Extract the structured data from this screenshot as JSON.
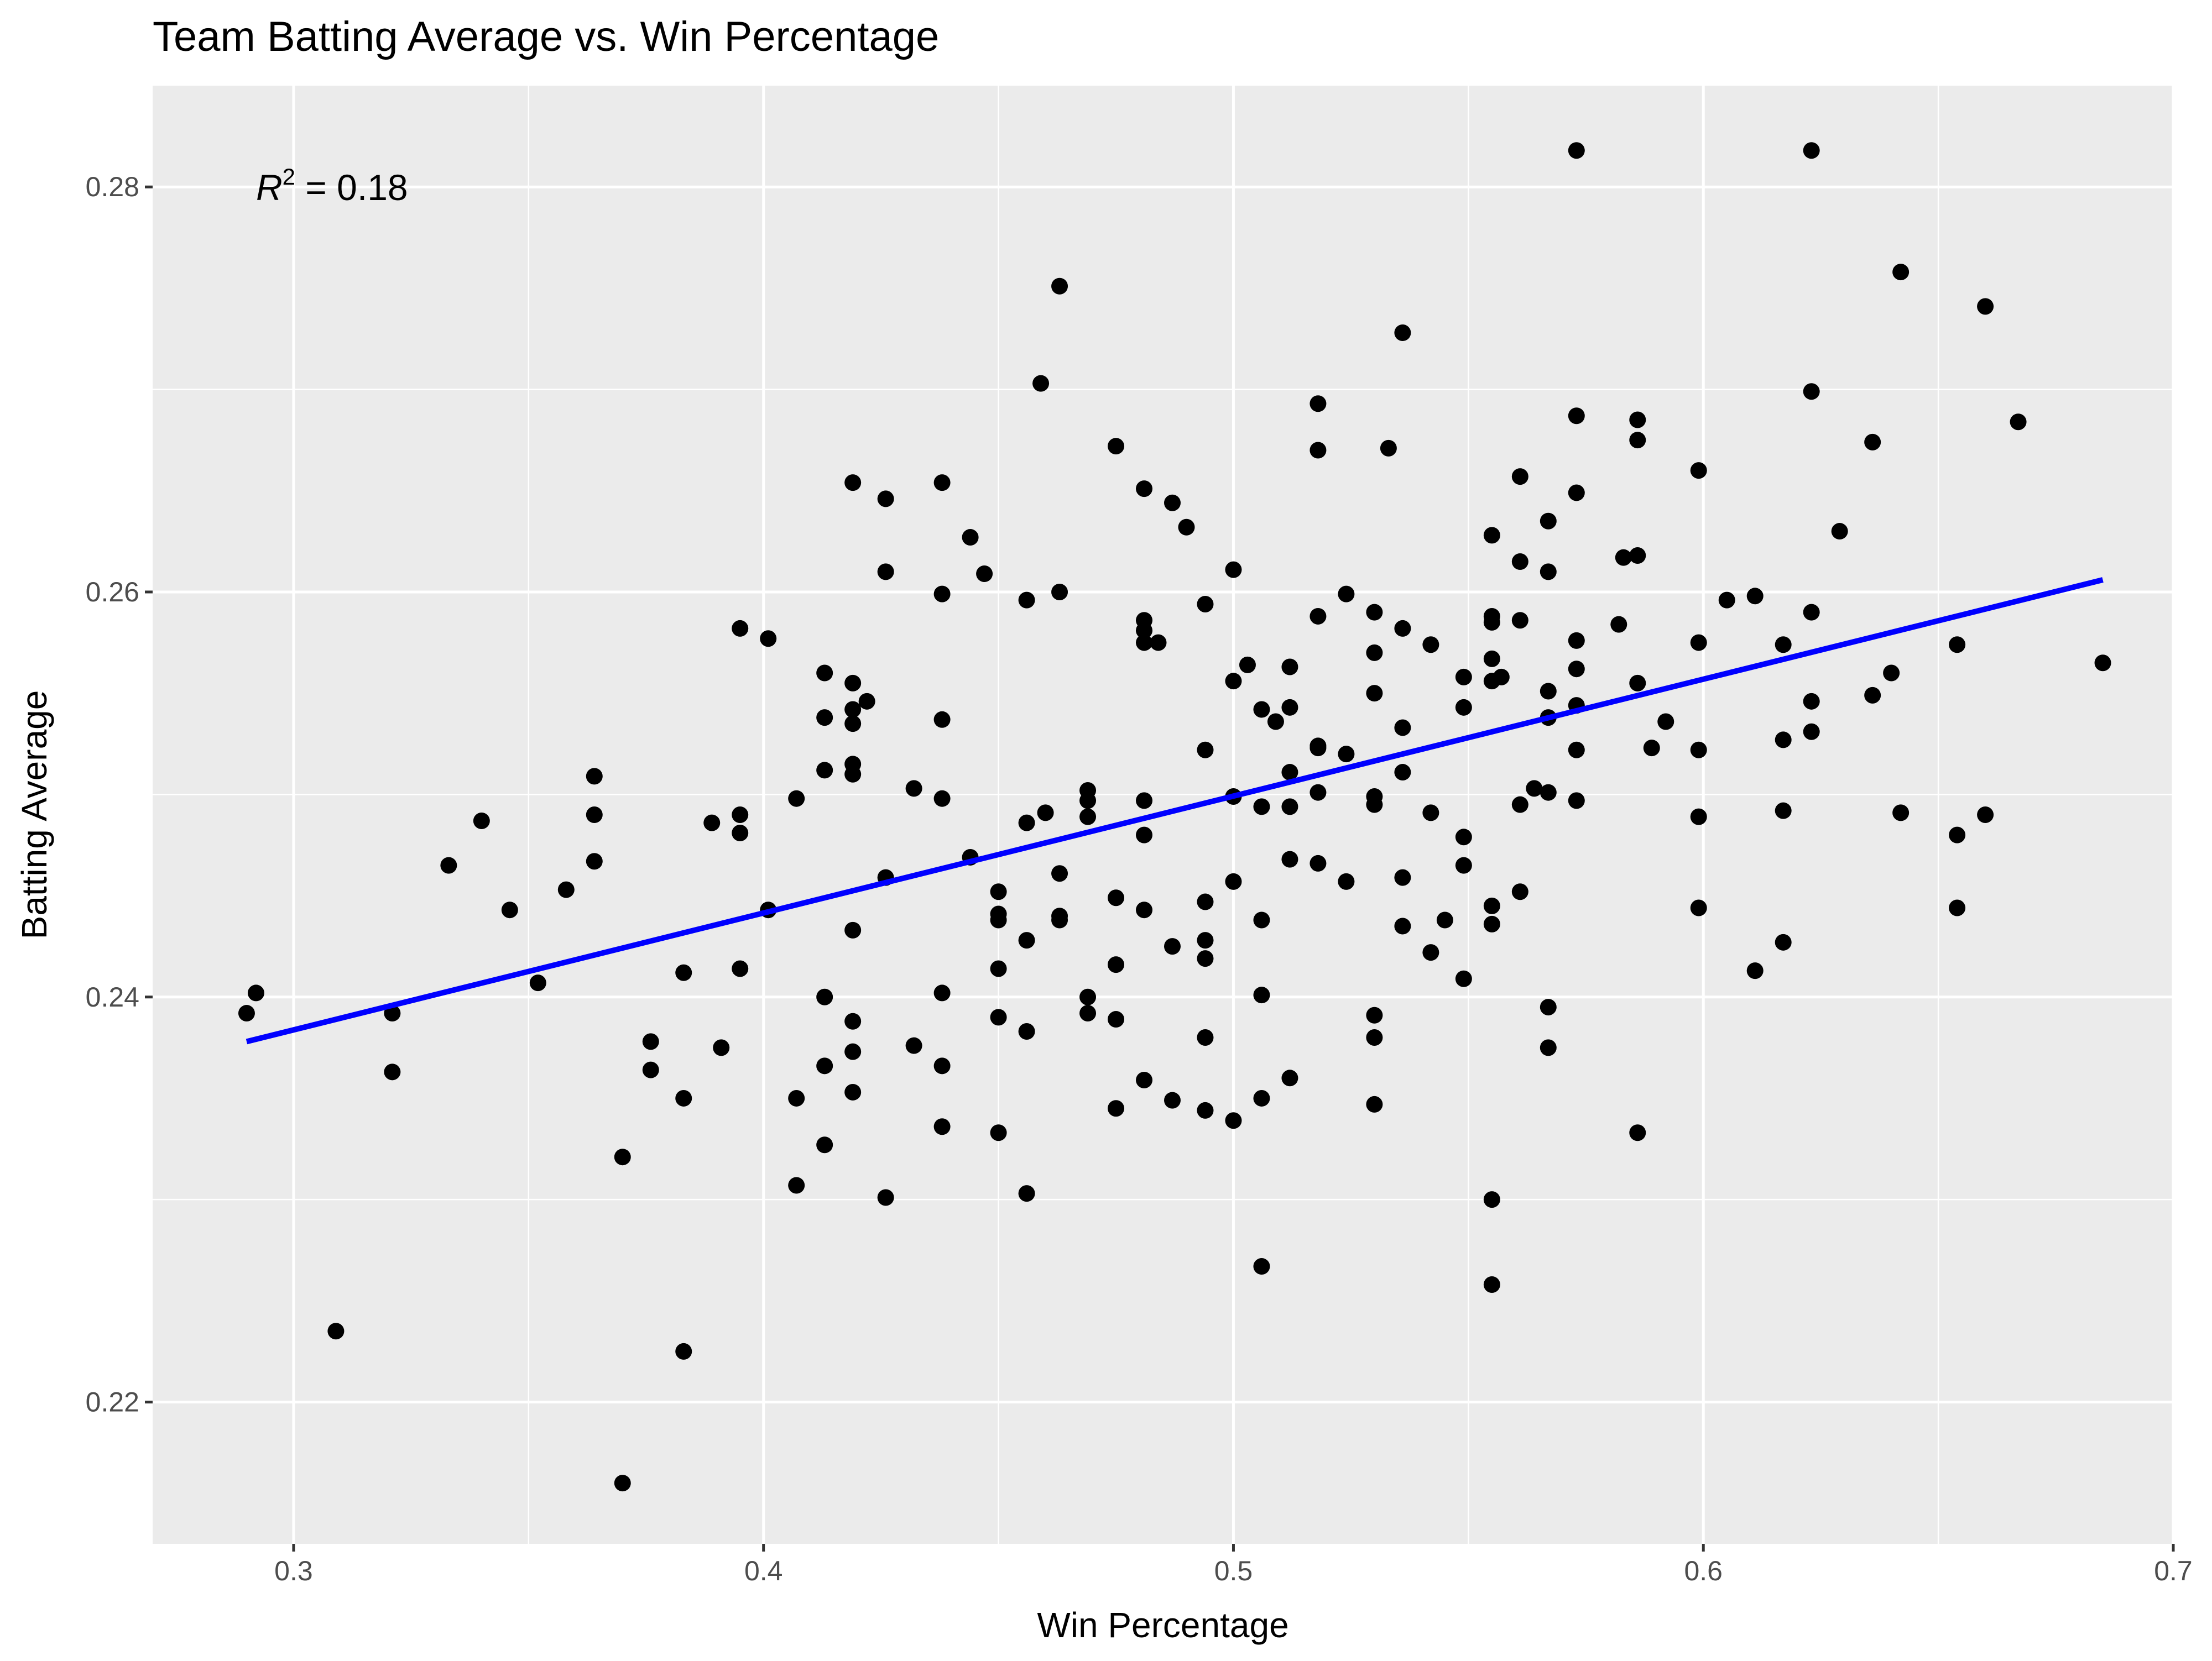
{
  "chart_data": {
    "type": "scatter",
    "title": "Team Batting Average vs. Win Percentage",
    "xlabel": "Win Percentage",
    "ylabel": "Batting Average",
    "xlim": [
      0.27,
      0.7
    ],
    "ylim": [
      0.213,
      0.285
    ],
    "xticks": [
      0.3,
      0.4,
      0.5,
      0.6,
      0.7
    ],
    "xtick_labels": [
      "0.3",
      "0.4",
      "0.5",
      "0.6",
      "0.7"
    ],
    "yticks": [
      0.22,
      0.24,
      0.26,
      0.28
    ],
    "ytick_labels": [
      "0.22",
      "0.24",
      "0.26",
      "0.28"
    ],
    "grid": true,
    "annotation": {
      "prefix": "R",
      "superscript": "2",
      "suffix": " = 0.18",
      "x": 0.292,
      "y": 0.28
    },
    "trend_line": {
      "x": [
        0.29,
        0.685
      ],
      "y": [
        0.2378,
        0.2606
      ],
      "color": "#0000ff"
    },
    "colors": {
      "points": "#000000",
      "trend": "#0000ff",
      "panel": "#ebebeb",
      "grid": "#ffffff"
    },
    "series": [
      {
        "x": [
          0.29,
          0.292,
          0.309,
          0.321,
          0.321,
          0.333,
          0.34,
          0.346,
          0.352,
          0.358,
          0.364,
          0.364,
          0.364,
          0.37,
          0.37,
          0.376,
          0.376,
          0.383,
          0.383,
          0.383,
          0.389,
          0.391,
          0.395,
          0.395,
          0.395,
          0.395,
          0.401,
          0.401,
          0.407,
          0.407,
          0.407,
          0.413,
          0.413,
          0.413,
          0.413,
          0.413,
          0.413,
          0.419,
          0.419,
          0.419,
          0.419,
          0.419,
          0.419,
          0.419,
          0.419,
          0.419,
          0.419,
          0.422,
          0.426,
          0.426,
          0.426,
          0.426,
          0.432,
          0.432,
          0.438,
          0.438,
          0.438,
          0.438,
          0.438,
          0.438,
          0.438,
          0.444,
          0.444,
          0.447,
          0.45,
          0.45,
          0.45,
          0.45,
          0.45,
          0.45,
          0.456,
          0.456,
          0.456,
          0.456,
          0.456,
          0.459,
          0.46,
          0.463,
          0.463,
          0.463,
          0.463,
          0.463,
          0.469,
          0.469,
          0.469,
          0.469,
          0.469,
          0.475,
          0.475,
          0.475,
          0.475,
          0.475,
          0.481,
          0.481,
          0.481,
          0.481,
          0.481,
          0.481,
          0.481,
          0.481,
          0.484,
          0.487,
          0.487,
          0.487,
          0.49,
          0.494,
          0.494,
          0.494,
          0.494,
          0.494,
          0.494,
          0.494,
          0.5,
          0.5,
          0.5,
          0.5,
          0.5,
          0.503,
          0.506,
          0.506,
          0.506,
          0.506,
          0.506,
          0.506,
          0.509,
          0.512,
          0.512,
          0.512,
          0.512,
          0.512,
          0.512,
          0.518,
          0.518,
          0.518,
          0.518,
          0.518,
          0.518,
          0.518,
          0.524,
          0.524,
          0.524,
          0.53,
          0.53,
          0.53,
          0.53,
          0.53,
          0.53,
          0.53,
          0.53,
          0.533,
          0.536,
          0.536,
          0.536,
          0.536,
          0.536,
          0.536,
          0.542,
          0.542,
          0.542,
          0.545,
          0.549,
          0.549,
          0.549,
          0.549,
          0.549,
          0.555,
          0.555,
          0.555,
          0.555,
          0.555,
          0.555,
          0.555,
          0.555,
          0.555,
          0.557,
          0.561,
          0.561,
          0.561,
          0.561,
          0.561,
          0.564,
          0.567,
          0.567,
          0.567,
          0.567,
          0.567,
          0.567,
          0.567,
          0.573,
          0.573,
          0.573,
          0.573,
          0.573,
          0.573,
          0.573,
          0.573,
          0.582,
          0.583,
          0.586,
          0.586,
          0.586,
          0.586,
          0.586,
          0.589,
          0.592,
          0.599,
          0.599,
          0.599,
          0.599,
          0.599,
          0.605,
          0.611,
          0.611,
          0.617,
          0.617,
          0.617,
          0.617,
          0.623,
          0.623,
          0.623,
          0.623,
          0.623,
          0.629,
          0.636,
          0.636,
          0.64,
          0.642,
          0.642,
          0.654,
          0.654,
          0.654,
          0.66,
          0.66,
          0.667,
          0.685
        ],
        "y": [
          0.2392,
          0.2402,
          0.2235,
          0.2392,
          0.2363,
          0.2465,
          0.2487,
          0.2443,
          0.2407,
          0.2453,
          0.2509,
          0.249,
          0.2467,
          0.2321,
          0.216,
          0.2378,
          0.2364,
          0.2412,
          0.235,
          0.2225,
          0.2486,
          0.2375,
          0.2582,
          0.249,
          0.2481,
          0.2414,
          0.2577,
          0.2443,
          0.2498,
          0.235,
          0.2307,
          0.256,
          0.2538,
          0.2512,
          0.24,
          0.2366,
          0.2327,
          0.2654,
          0.2555,
          0.2542,
          0.2535,
          0.2515,
          0.251,
          0.2433,
          0.2388,
          0.2373,
          0.2353,
          0.2546,
          0.2646,
          0.261,
          0.2459,
          0.2301,
          0.2503,
          0.2376,
          0.2654,
          0.2599,
          0.2537,
          0.2498,
          0.2402,
          0.2366,
          0.2336,
          0.2627,
          0.2469,
          0.2609,
          0.2452,
          0.2441,
          0.2438,
          0.2414,
          0.239,
          0.2333,
          0.2596,
          0.2486,
          0.2428,
          0.2383,
          0.2303,
          0.2703,
          0.2491,
          0.2751,
          0.26,
          0.2461,
          0.244,
          0.2438,
          0.2502,
          0.2497,
          0.2489,
          0.24,
          0.2392,
          0.2672,
          0.2449,
          0.2416,
          0.2389,
          0.2345,
          0.2651,
          0.2586,
          0.2581,
          0.2575,
          0.2497,
          0.248,
          0.2443,
          0.2359,
          0.2575,
          0.2644,
          0.2425,
          0.2349,
          0.2632,
          0.2594,
          0.2522,
          0.2447,
          0.2428,
          0.2419,
          0.238,
          0.2344,
          0.2611,
          0.2556,
          0.2499,
          0.2457,
          0.2339,
          0.2564,
          0.2542,
          0.2494,
          0.2438,
          0.2401,
          0.235,
          0.2267,
          0.2536,
          0.2563,
          0.2543,
          0.2511,
          0.2494,
          0.2468,
          0.236,
          0.2693,
          0.267,
          0.2588,
          0.2524,
          0.2523,
          0.2501,
          0.2466,
          0.2599,
          0.252,
          0.2457,
          0.259,
          0.257,
          0.255,
          0.2499,
          0.2495,
          0.2391,
          0.238,
          0.2347,
          0.2671,
          0.2728,
          0.2582,
          0.2533,
          0.2511,
          0.2459,
          0.2435,
          0.2574,
          0.2491,
          0.2422,
          0.2438,
          0.2558,
          0.2543,
          0.2479,
          0.2465,
          0.2409,
          0.2628,
          0.2588,
          0.2585,
          0.2567,
          0.2556,
          0.2445,
          0.2436,
          0.23,
          0.2258,
          0.2558,
          0.2657,
          0.2615,
          0.2586,
          0.2495,
          0.2452,
          0.2503,
          0.2635,
          0.261,
          0.2551,
          0.2538,
          0.2501,
          0.2395,
          0.2375,
          0.2818,
          0.2687,
          0.2649,
          0.2576,
          0.2562,
          0.2544,
          0.2522,
          0.2497,
          0.2584,
          0.2617,
          0.2685,
          0.2675,
          0.2618,
          0.2555,
          0.2333,
          0.2523,
          0.2536,
          0.266,
          0.2575,
          0.2522,
          0.2489,
          0.2444,
          0.2596,
          0.2598,
          0.2413,
          0.2574,
          0.2527,
          0.2492,
          0.2427,
          0.2818,
          0.2699,
          0.259,
          0.2546,
          0.2531,
          0.263,
          0.2674,
          0.2549,
          0.256,
          0.2758,
          0.2491,
          0.2574,
          0.248,
          0.2444,
          0.2741,
          0.249,
          0.2684,
          0.2565
        ]
      }
    ]
  }
}
